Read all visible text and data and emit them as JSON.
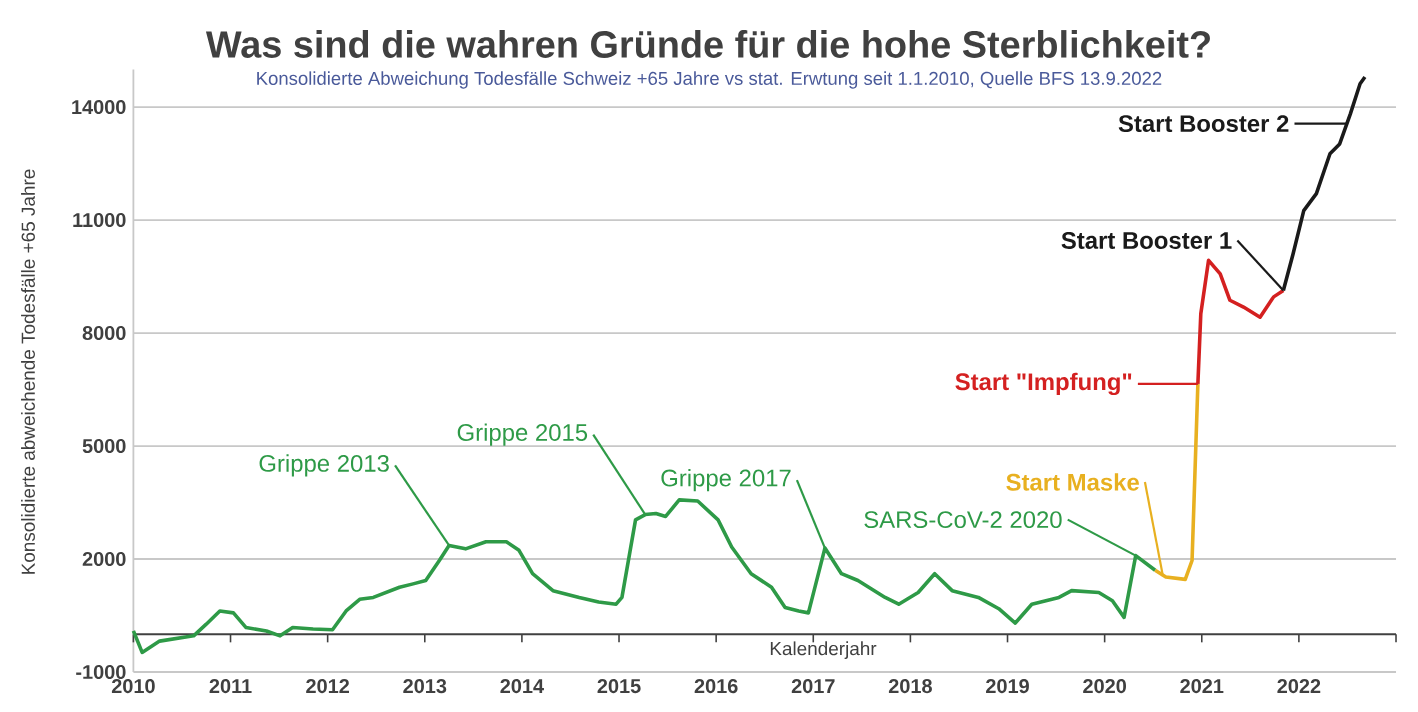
{
  "chart_data": {
    "type": "line",
    "title": "Was sind die wahren Gründe für die hohe Sterblichkeit?",
    "subtitle": "Konsolidierte Abweichung Todesfälle Schweiz +65 Jahre vs stat. Erwtung seit 1.1.2010, Quelle BFS 13.9.2022",
    "xlabel": "Kalenderjahr",
    "ylabel": "Konsolidierte abweichende Todesfälle +65 Jahre",
    "xlim": [
      2010,
      2023
    ],
    "xticks": [
      2010,
      2011,
      2012,
      2013,
      2014,
      2015,
      2016,
      2017,
      2018,
      2019,
      2020,
      2021,
      2022,
      {
        "value": 2023,
        "label": null
      }
    ],
    "ylim": [
      -1000,
      15000
    ],
    "yticks": [
      -1000,
      2000,
      5000,
      8000,
      11000,
      14000
    ],
    "grid": "y",
    "series": [
      {
        "color": "#2e9a47",
        "x": [
          2010.0,
          2010.09,
          2010.27,
          2010.62,
          2010.75,
          2010.89,
          2011.03,
          2011.16,
          2011.37,
          2011.51,
          2011.64,
          2011.85,
          2012.05,
          2012.19,
          2012.33,
          2012.47,
          2012.74,
          2012.88,
          2013.01,
          2013.15,
          2013.25,
          2013.42,
          2013.63,
          2013.84,
          2013.97,
          2014.11,
          2014.32,
          2014.59,
          2014.79,
          2014.97,
          2015.03,
          2015.17,
          2015.27,
          2015.38,
          2015.48,
          2015.62,
          2015.81,
          2016.02,
          2016.16,
          2016.36,
          2016.57,
          2016.71,
          2016.85,
          2016.95,
          2017.12,
          2017.29,
          2017.46,
          2017.74,
          2017.88,
          2018.08,
          2018.25,
          2018.43,
          2018.7,
          2018.91,
          2019.08,
          2019.25,
          2019.53,
          2019.66,
          2019.94,
          2020.08,
          2020.2,
          2020.32,
          2020.52
        ],
        "values": [
          90,
          -480,
          -180,
          -40,
          270,
          620,
          570,
          180,
          90,
          -40,
          180,
          140,
          120,
          620,
          930,
          980,
          1250,
          1340,
          1430,
          1960,
          2360,
          2270,
          2460,
          2460,
          2230,
          1610,
          1160,
          980,
          860,
          800,
          980,
          3040,
          3180,
          3210,
          3130,
          3570,
          3540,
          3040,
          2320,
          1610,
          1250,
          710,
          620,
          570,
          2290,
          1610,
          1430,
          980,
          800,
          1110,
          1610,
          1160,
          980,
          680,
          300,
          800,
          980,
          1160,
          1110,
          890,
          450,
          2090,
          1700
        ]
      },
      {
        "color": "#e8b020",
        "x": [
          2020.52,
          2020.63,
          2020.83,
          2020.9,
          2020.96
        ],
        "values": [
          1700,
          1520,
          1460,
          1960,
          6650
        ]
      },
      {
        "color": "#d42020",
        "x": [
          2020.96,
          2020.99,
          2021.07,
          2021.19,
          2021.29,
          2021.43,
          2021.6,
          2021.74,
          2021.84
        ],
        "values": [
          6650,
          8510,
          9930,
          9570,
          8870,
          8690,
          8420,
          8960,
          9130
        ]
      },
      {
        "color": "#1a1a1a",
        "x": [
          2021.84,
          2021.94,
          2022.05,
          2022.18,
          2022.32,
          2022.42,
          2022.53,
          2022.63,
          2022.68
        ],
        "values": [
          9130,
          10100,
          11250,
          11700,
          12760,
          13020,
          13820,
          14620,
          14800
        ]
      }
    ],
    "annotations": [
      {
        "text": "Grippe 2013",
        "x": 2013.25,
        "y": 2360
      },
      {
        "text": "Grippe 2015",
        "x": 2015.27,
        "y": 3180
      },
      {
        "text": "Grippe 2017",
        "x": 2017.12,
        "y": 2290
      },
      {
        "text": "SARS-CoV-2 2020",
        "x": 2020.32,
        "y": 2090
      },
      {
        "text": "Start Maske",
        "x": 2020.6,
        "y": 1550
      },
      {
        "text": "Start \"Impfung\"",
        "x": 2020.96,
        "y": 6650
      },
      {
        "text": "Start Booster 1",
        "x": 2021.84,
        "y": 9130
      },
      {
        "text": "Start Booster 2",
        "x": 2022.49,
        "y": 13560
      }
    ]
  }
}
